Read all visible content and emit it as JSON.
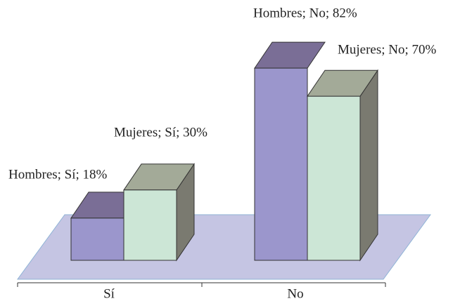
{
  "chart_data": {
    "type": "bar3d",
    "categories": [
      "Sí",
      "No"
    ],
    "series": [
      {
        "name": "Hombres",
        "color": "#9b96cc",
        "values": [
          18,
          82
        ],
        "value_labels": [
          "Hombres; Sí; 18%",
          "Hombres; No; 82%"
        ]
      },
      {
        "name": "Mujeres",
        "color": "#cce6d6",
        "values": [
          30,
          70
        ],
        "value_labels": [
          "Mujeres; Sí; 30%",
          "Mujeres; No; 70%"
        ]
      }
    ],
    "ylim": [
      0,
      100
    ]
  }
}
